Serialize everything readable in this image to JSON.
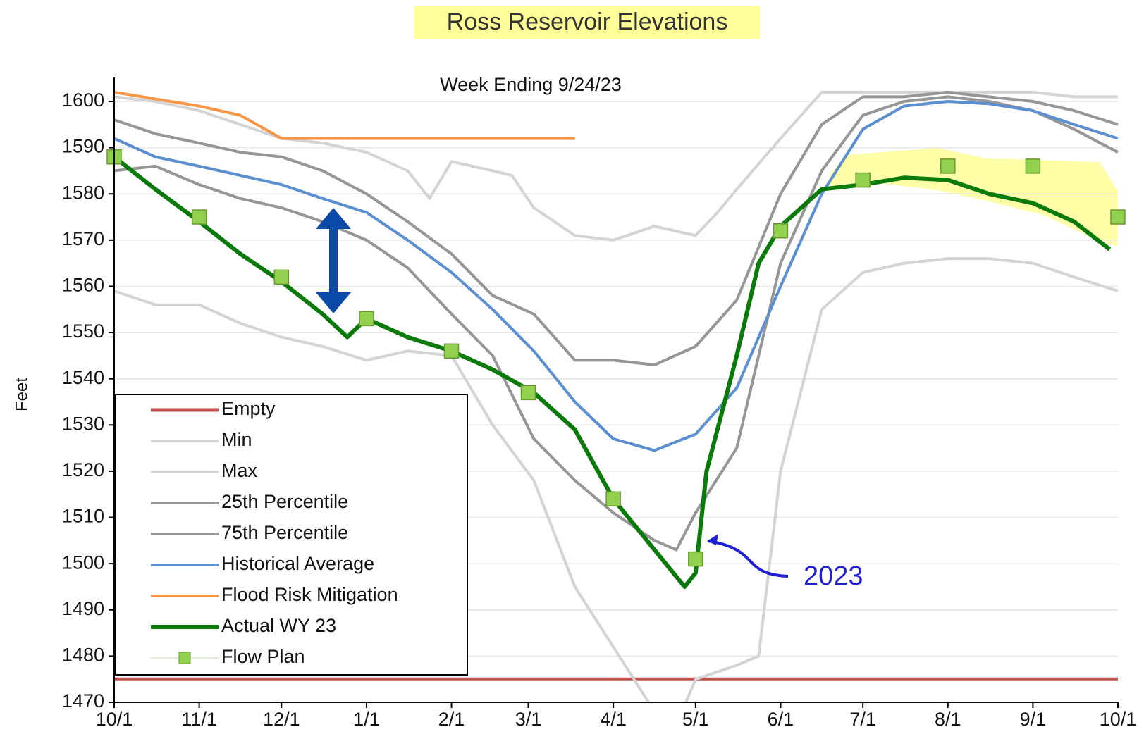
{
  "chart_data": {
    "type": "line",
    "title": "Ross Reservoir Elevations",
    "subtitle": "Week Ending 9/24/23",
    "y_label": "Feet",
    "annotation": "2023",
    "xlim": [
      0,
      366
    ],
    "xticks": [
      {
        "value": 0,
        "label": "10/1"
      },
      {
        "value": 31,
        "label": "11/1"
      },
      {
        "value": 61,
        "label": "12/1"
      },
      {
        "value": 92,
        "label": "1/1"
      },
      {
        "value": 123,
        "label": "2/1"
      },
      {
        "value": 151,
        "label": "3/1"
      },
      {
        "value": 182,
        "label": "4/1"
      },
      {
        "value": 212,
        "label": "5/1"
      },
      {
        "value": 243,
        "label": "6/1"
      },
      {
        "value": 273,
        "label": "7/1"
      },
      {
        "value": 304,
        "label": "8/1"
      },
      {
        "value": 335,
        "label": "9/1"
      },
      {
        "value": 366,
        "label": "10/1"
      }
    ],
    "ylim": [
      1470,
      1600
    ],
    "yticks": [
      1470,
      1480,
      1490,
      1500,
      1510,
      1520,
      1530,
      1540,
      1550,
      1560,
      1570,
      1580,
      1590,
      1600
    ],
    "grid": true,
    "legend": "lower left",
    "series": [
      {
        "name": "Empty",
        "color": "#c0504d",
        "line_width": 5,
        "x": [
          0,
          366
        ],
        "values": [
          1475,
          1475
        ]
      },
      {
        "name": "Min",
        "color": "#d4d4d4",
        "line_width": 4,
        "x": [
          0,
          15,
          31,
          46,
          61,
          76,
          92,
          107,
          123,
          138,
          153,
          168,
          182,
          197,
          205,
          212,
          227,
          235,
          243,
          258,
          273,
          288,
          304,
          319,
          335,
          350,
          366
        ],
        "values": [
          1559,
          1556,
          1556,
          1552,
          1549,
          1547,
          1544,
          1546,
          1545,
          1530,
          1518,
          1495,
          1482,
          1468,
          1465,
          1475,
          1478,
          1480,
          1520,
          1555,
          1563,
          1565,
          1566,
          1566,
          1565,
          1562,
          1559
        ]
      },
      {
        "name": "Max",
        "color": "#d4d4d4",
        "line_width": 4,
        "x": [
          0,
          15,
          31,
          46,
          61,
          76,
          92,
          107,
          115,
          123,
          138,
          145,
          153,
          168,
          182,
          197,
          212,
          220,
          227,
          243,
          258,
          273,
          304,
          335,
          350,
          366
        ],
        "values": [
          1601,
          1600,
          1598,
          1595,
          1592,
          1591,
          1589,
          1585,
          1579,
          1587,
          1585,
          1584,
          1577,
          1571,
          1570,
          1573,
          1571,
          1576,
          1581,
          1592,
          1602,
          1602,
          1602,
          1602,
          1601,
          1601
        ]
      },
      {
        "name": "25th Percentile",
        "color": "#969696",
        "line_width": 4,
        "x": [
          0,
          15,
          31,
          46,
          61,
          76,
          92,
          107,
          123,
          138,
          153,
          168,
          182,
          197,
          205,
          212,
          227,
          243,
          258,
          273,
          288,
          304,
          319,
          335,
          350,
          366
        ],
        "values": [
          1585,
          1586,
          1582,
          1579,
          1577,
          1574,
          1570,
          1564,
          1554,
          1545,
          1527,
          1518,
          1511,
          1505,
          1503,
          1511,
          1525,
          1565,
          1585,
          1597,
          1600,
          1601,
          1600,
          1598,
          1594,
          1589
        ]
      },
      {
        "name": "75th Percentile",
        "color": "#969696",
        "line_width": 4,
        "x": [
          0,
          15,
          31,
          46,
          61,
          76,
          92,
          107,
          123,
          138,
          153,
          168,
          182,
          197,
          212,
          227,
          243,
          258,
          273,
          288,
          304,
          319,
          335,
          350,
          366
        ],
        "values": [
          1596,
          1593,
          1591,
          1589,
          1588,
          1585,
          1580,
          1574,
          1567,
          1558,
          1554,
          1544,
          1544,
          1543,
          1547,
          1557,
          1580,
          1595,
          1601,
          1601,
          1602,
          1601,
          1600,
          1598,
          1595
        ]
      },
      {
        "name": "Historical Average",
        "color": "#5b8fd0",
        "line_width": 4,
        "x": [
          0,
          15,
          31,
          46,
          61,
          76,
          92,
          107,
          123,
          138,
          153,
          168,
          182,
          197,
          212,
          227,
          243,
          258,
          273,
          288,
          304,
          319,
          335,
          350,
          366
        ],
        "values": [
          1592,
          1588,
          1586,
          1584,
          1582,
          1579,
          1576,
          1570,
          1563,
          1555,
          1546,
          1535,
          1527,
          1524.5,
          1528,
          1538,
          1560,
          1580,
          1594,
          1599,
          1600,
          1599.5,
          1598,
          1595,
          1592
        ]
      },
      {
        "name": "Flood Risk Mitigation",
        "color": "#f79646",
        "line_width": 4,
        "x": [
          0,
          31,
          46,
          61,
          168
        ],
        "values": [
          1602,
          1599,
          1597,
          1592,
          1592
        ]
      },
      {
        "name": "Actual WY 23",
        "color": "#0a7a0a",
        "line_width": 6,
        "x": [
          0,
          15,
          31,
          46,
          61,
          76,
          85,
          92,
          107,
          123,
          138,
          153,
          168,
          182,
          197,
          208,
          212,
          216,
          227,
          235,
          243,
          258,
          273,
          288,
          304,
          319,
          335,
          350,
          363
        ],
        "values": [
          1588,
          1581,
          1574,
          1567,
          1561,
          1554,
          1549,
          1553,
          1549,
          1546,
          1542,
          1537,
          1529,
          1514,
          1503,
          1495,
          1498,
          1520,
          1545,
          1565,
          1573,
          1581,
          1582,
          1583.5,
          1583,
          1580,
          1578,
          1574,
          1568
        ]
      },
      {
        "name": "Flow Plan",
        "color": "#92d050",
        "marker": "square",
        "x": [
          0,
          31,
          61,
          92,
          123,
          151,
          182,
          212,
          243,
          273,
          304,
          335,
          366
        ],
        "values": [
          1588,
          1575,
          1562,
          1553,
          1546,
          1537,
          1514,
          1501,
          1572,
          1583,
          1586,
          1586,
          1575
        ]
      }
    ]
  }
}
